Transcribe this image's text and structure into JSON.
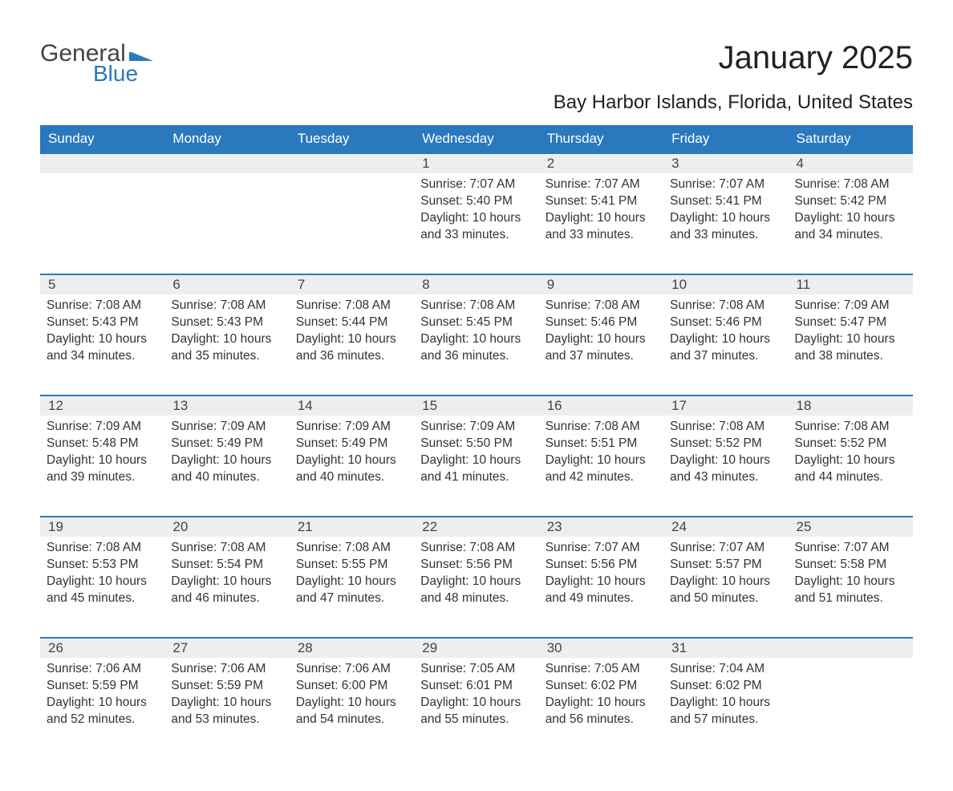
{
  "logo": {
    "text_general": "General",
    "text_blue": "Blue",
    "flag_color": "#2a79bf"
  },
  "title": "January 2025",
  "location": "Bay Harbor Islands, Florida, United States",
  "colors": {
    "header_bg": "#2a79bf",
    "header_text": "#ffffff",
    "daynum_bg": "#eeeeee",
    "daynum_border": "#2a79bf",
    "body_text": "#333333",
    "page_bg": "#ffffff"
  },
  "weekdays": [
    "Sunday",
    "Monday",
    "Tuesday",
    "Wednesday",
    "Thursday",
    "Friday",
    "Saturday"
  ],
  "labels": {
    "sunrise": "Sunrise: ",
    "sunset": "Sunset: ",
    "daylight": "Daylight: "
  },
  "weeks": [
    [
      null,
      null,
      null,
      {
        "n": "1",
        "sr": "7:07 AM",
        "ss": "5:40 PM",
        "dl": "10 hours and 33 minutes."
      },
      {
        "n": "2",
        "sr": "7:07 AM",
        "ss": "5:41 PM",
        "dl": "10 hours and 33 minutes."
      },
      {
        "n": "3",
        "sr": "7:07 AM",
        "ss": "5:41 PM",
        "dl": "10 hours and 33 minutes."
      },
      {
        "n": "4",
        "sr": "7:08 AM",
        "ss": "5:42 PM",
        "dl": "10 hours and 34 minutes."
      }
    ],
    [
      {
        "n": "5",
        "sr": "7:08 AM",
        "ss": "5:43 PM",
        "dl": "10 hours and 34 minutes."
      },
      {
        "n": "6",
        "sr": "7:08 AM",
        "ss": "5:43 PM",
        "dl": "10 hours and 35 minutes."
      },
      {
        "n": "7",
        "sr": "7:08 AM",
        "ss": "5:44 PM",
        "dl": "10 hours and 36 minutes."
      },
      {
        "n": "8",
        "sr": "7:08 AM",
        "ss": "5:45 PM",
        "dl": "10 hours and 36 minutes."
      },
      {
        "n": "9",
        "sr": "7:08 AM",
        "ss": "5:46 PM",
        "dl": "10 hours and 37 minutes."
      },
      {
        "n": "10",
        "sr": "7:08 AM",
        "ss": "5:46 PM",
        "dl": "10 hours and 37 minutes."
      },
      {
        "n": "11",
        "sr": "7:09 AM",
        "ss": "5:47 PM",
        "dl": "10 hours and 38 minutes."
      }
    ],
    [
      {
        "n": "12",
        "sr": "7:09 AM",
        "ss": "5:48 PM",
        "dl": "10 hours and 39 minutes."
      },
      {
        "n": "13",
        "sr": "7:09 AM",
        "ss": "5:49 PM",
        "dl": "10 hours and 40 minutes."
      },
      {
        "n": "14",
        "sr": "7:09 AM",
        "ss": "5:49 PM",
        "dl": "10 hours and 40 minutes."
      },
      {
        "n": "15",
        "sr": "7:09 AM",
        "ss": "5:50 PM",
        "dl": "10 hours and 41 minutes."
      },
      {
        "n": "16",
        "sr": "7:08 AM",
        "ss": "5:51 PM",
        "dl": "10 hours and 42 minutes."
      },
      {
        "n": "17",
        "sr": "7:08 AM",
        "ss": "5:52 PM",
        "dl": "10 hours and 43 minutes."
      },
      {
        "n": "18",
        "sr": "7:08 AM",
        "ss": "5:52 PM",
        "dl": "10 hours and 44 minutes."
      }
    ],
    [
      {
        "n": "19",
        "sr": "7:08 AM",
        "ss": "5:53 PM",
        "dl": "10 hours and 45 minutes."
      },
      {
        "n": "20",
        "sr": "7:08 AM",
        "ss": "5:54 PM",
        "dl": "10 hours and 46 minutes."
      },
      {
        "n": "21",
        "sr": "7:08 AM",
        "ss": "5:55 PM",
        "dl": "10 hours and 47 minutes."
      },
      {
        "n": "22",
        "sr": "7:08 AM",
        "ss": "5:56 PM",
        "dl": "10 hours and 48 minutes."
      },
      {
        "n": "23",
        "sr": "7:07 AM",
        "ss": "5:56 PM",
        "dl": "10 hours and 49 minutes."
      },
      {
        "n": "24",
        "sr": "7:07 AM",
        "ss": "5:57 PM",
        "dl": "10 hours and 50 minutes."
      },
      {
        "n": "25",
        "sr": "7:07 AM",
        "ss": "5:58 PM",
        "dl": "10 hours and 51 minutes."
      }
    ],
    [
      {
        "n": "26",
        "sr": "7:06 AM",
        "ss": "5:59 PM",
        "dl": "10 hours and 52 minutes."
      },
      {
        "n": "27",
        "sr": "7:06 AM",
        "ss": "5:59 PM",
        "dl": "10 hours and 53 minutes."
      },
      {
        "n": "28",
        "sr": "7:06 AM",
        "ss": "6:00 PM",
        "dl": "10 hours and 54 minutes."
      },
      {
        "n": "29",
        "sr": "7:05 AM",
        "ss": "6:01 PM",
        "dl": "10 hours and 55 minutes."
      },
      {
        "n": "30",
        "sr": "7:05 AM",
        "ss": "6:02 PM",
        "dl": "10 hours and 56 minutes."
      },
      {
        "n": "31",
        "sr": "7:04 AM",
        "ss": "6:02 PM",
        "dl": "10 hours and 57 minutes."
      },
      null
    ]
  ]
}
